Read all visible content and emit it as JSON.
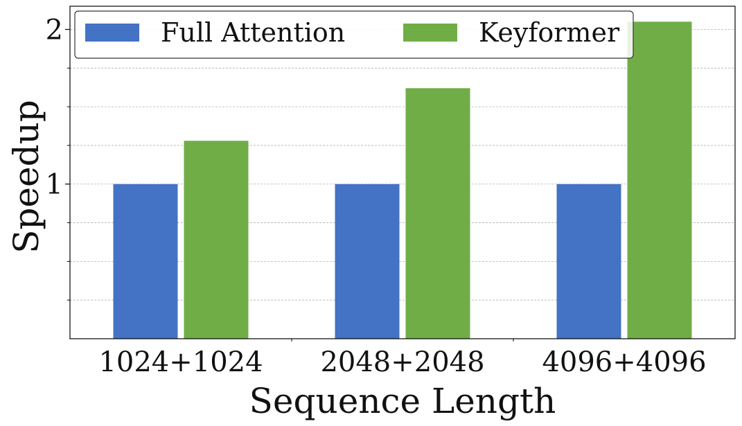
{
  "chart_data": {
    "type": "bar",
    "title": "",
    "xlabel": "Sequence Length",
    "ylabel": "Speedup",
    "categories": [
      "1024+1024",
      "2048+2048",
      "4096+4096"
    ],
    "series": [
      {
        "name": "Full Attention",
        "color": "#4472C4",
        "values": [
          1.0,
          1.0,
          1.0
        ]
      },
      {
        "name": "Keyformer",
        "color": "#70AD47",
        "values": [
          1.28,
          1.62,
          2.05
        ]
      }
    ],
    "ylim": [
      0,
      2.15
    ],
    "yticks": [
      {
        "value": 1,
        "label": "1"
      },
      {
        "value": 2,
        "label": "2"
      }
    ],
    "minor_ticks": [
      0.25,
      0.5,
      0.75,
      1.25,
      1.5,
      1.75
    ],
    "grid": true,
    "legend": {
      "position": "top",
      "columns": 2
    }
  }
}
